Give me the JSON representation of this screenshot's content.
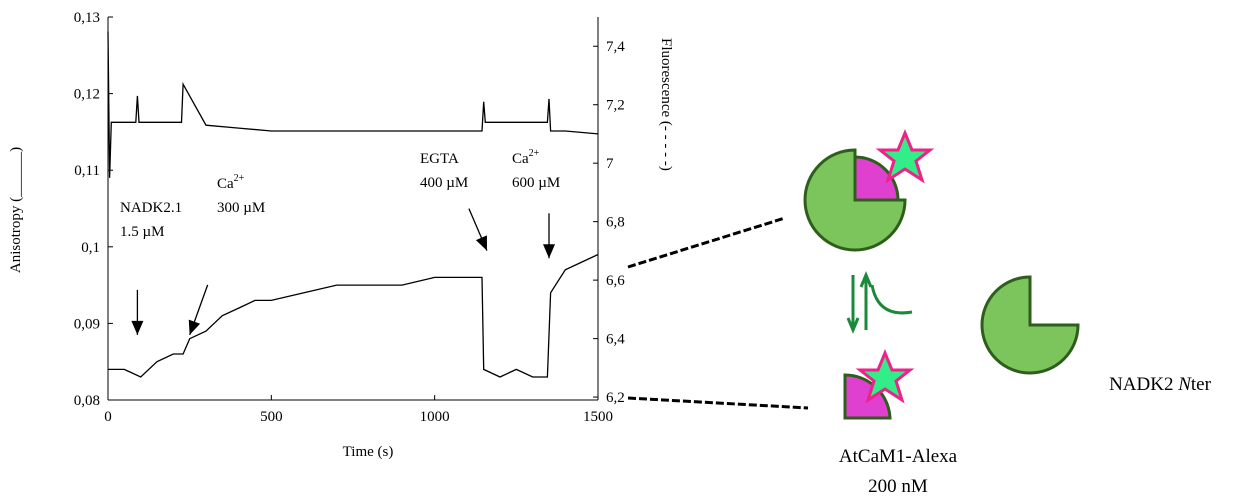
{
  "chart_data": {
    "type": "line",
    "xlabel": "Time (s)",
    "ylabel": "Anisotropy (______)",
    "y2label": "Fluorescence (- - - - -)",
    "xlim": [
      0,
      1500
    ],
    "xticks": [
      0,
      500,
      1000,
      1500
    ],
    "ylim": [
      0.08,
      0.13
    ],
    "yticks": [
      {
        "value": 0.08,
        "label": "0,08"
      },
      {
        "value": 0.09,
        "label": "0,09"
      },
      {
        "value": 0.1,
        "label": "0,1"
      },
      {
        "value": 0.11,
        "label": "0,11"
      },
      {
        "value": 0.12,
        "label": "0,12"
      },
      {
        "value": 0.13,
        "label": "0,13"
      }
    ],
    "y2lim": [
      6.19,
      7.5
    ],
    "y2ticks": [
      {
        "value": 6.2,
        "label": "6,2"
      },
      {
        "value": 6.4,
        "label": "6,4"
      },
      {
        "value": 6.6,
        "label": "6,6"
      },
      {
        "value": 6.8,
        "label": "6,8"
      },
      7,
      {
        "value": 7.2,
        "label": "7,2"
      },
      {
        "value": 7.4,
        "label": "7,4"
      }
    ],
    "series": [
      {
        "name": "Anisotropy",
        "color": "#000000",
        "x": [
          0,
          50,
          100,
          150,
          200,
          230,
          250,
          300,
          350,
          400,
          450,
          500,
          600,
          700,
          800,
          900,
          1000,
          1100,
          1145,
          1150,
          1200,
          1250,
          1300,
          1345,
          1355,
          1400,
          1450,
          1500
        ],
        "values": [
          0.084,
          0.084,
          0.083,
          0.085,
          0.086,
          0.086,
          0.088,
          0.089,
          0.091,
          0.092,
          0.093,
          0.093,
          0.094,
          0.095,
          0.095,
          0.095,
          0.096,
          0.096,
          0.096,
          0.084,
          0.083,
          0.084,
          0.083,
          0.083,
          0.094,
          0.097,
          0.098,
          0.099
        ]
      },
      {
        "name": "Fluorescence",
        "color": "#000000",
        "axis": "y2",
        "x": [
          0,
          5,
          10,
          50,
          85,
          90,
          95,
          200,
          225,
          230,
          300,
          400,
          500,
          600,
          700,
          800,
          900,
          1000,
          1100,
          1145,
          1150,
          1155,
          1200,
          1300,
          1345,
          1350,
          1355,
          1400,
          1500
        ],
        "values": [
          7.45,
          6.95,
          7.14,
          7.14,
          7.14,
          7.23,
          7.14,
          7.14,
          7.14,
          7.27,
          7.13,
          7.12,
          7.11,
          7.11,
          7.11,
          7.11,
          7.11,
          7.11,
          7.11,
          7.11,
          7.21,
          7.14,
          7.14,
          7.14,
          7.14,
          7.22,
          7.11,
          7.11,
          7.1
        ]
      }
    ],
    "annotations": [
      {
        "x": 90,
        "y": 0.0885,
        "lines": [
          {
            "text": "NADK2.1"
          },
          {
            "text": "1.5 µM"
          }
        ]
      },
      {
        "x": 250,
        "y": 0.0885,
        "lines": [
          {
            "text": "Ca",
            "sup": "2+"
          },
          {
            "text": "300 µM"
          }
        ]
      },
      {
        "x": 1160,
        "y": 0.0995,
        "lines": [
          {
            "text": "EGTA"
          },
          {
            "text": "400 µM"
          }
        ]
      },
      {
        "x": 1350,
        "y": 0.0985,
        "lines": [
          {
            "text": "Ca",
            "sup": "2+"
          },
          {
            "text": "600 µM"
          }
        ]
      }
    ]
  },
  "diagram": {
    "complex_label": "AtCaM1-Alexa",
    "complex_conc": "200 nM",
    "partner_label": [
      "NADK2 ",
      "N",
      "ter"
    ]
  }
}
